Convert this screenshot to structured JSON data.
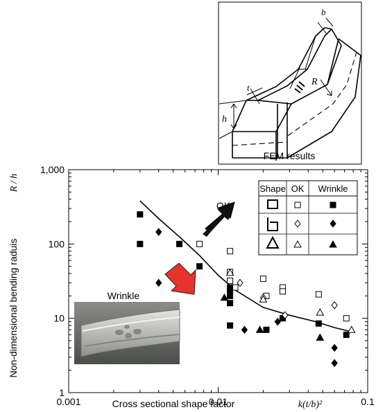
{
  "inset": {
    "caption": "FEM results",
    "labels": {
      "b": "b",
      "t": "t",
      "R": "R",
      "h": "h"
    }
  },
  "photo_label": "Wrinkle",
  "ok_arrow_label": "OK",
  "legend": {
    "headers": [
      "Shape",
      "OK",
      "Wrinkle"
    ],
    "rows": [
      {
        "shape": "square-section",
        "ok_marker": "open-square",
        "wrinkle_marker": "filled-square"
      },
      {
        "shape": "channel-section",
        "ok_marker": "open-diamond",
        "wrinkle_marker": "filled-diamond"
      },
      {
        "shape": "triangle-section",
        "ok_marker": "open-triangle",
        "wrinkle_marker": "filled-triangle"
      }
    ]
  },
  "colors": {
    "wrinkle_arrow": "#e8322d",
    "ok_arrow": "#000000"
  },
  "chart_data": {
    "type": "scatter",
    "xlabel": "Cross sectional shape factor",
    "xlabel_math": "k(t/b)²",
    "ylabel": "Non-dimensional bending raduis",
    "ylabel_math": "R / h",
    "x_scale": "log",
    "y_scale": "log",
    "xlim": [
      0.001,
      0.1
    ],
    "ylim": [
      1,
      1000
    ],
    "x_ticks": [
      {
        "value": 0.001,
        "label": "0.001"
      },
      {
        "value": 0.01,
        "label": "0.01"
      },
      {
        "value": 0.1,
        "label": "0.1"
      }
    ],
    "y_ticks": [
      {
        "value": 1,
        "label": "1"
      },
      {
        "value": 10,
        "label": "10"
      },
      {
        "value": 100,
        "label": "100"
      },
      {
        "value": 1000,
        "label": "1,000"
      }
    ],
    "boundary_curve": {
      "x": [
        0.003,
        0.004,
        0.0055,
        0.0075,
        0.01,
        0.013,
        0.02,
        0.03,
        0.045,
        0.06,
        0.08
      ],
      "y": [
        380,
        220,
        125,
        70,
        38,
        24,
        14,
        11,
        9,
        7.5,
        6.5
      ]
    },
    "series": [
      {
        "marker": "open-square",
        "points": [
          [
            0.0075,
            100
          ],
          [
            0.012,
            80
          ],
          [
            0.012,
            42
          ],
          [
            0.012,
            32
          ],
          [
            0.013,
            26
          ],
          [
            0.02,
            34
          ],
          [
            0.021,
            20
          ],
          [
            0.027,
            26
          ],
          [
            0.027,
            23
          ],
          [
            0.047,
            21
          ],
          [
            0.072,
            10
          ]
        ]
      },
      {
        "marker": "filled-square",
        "points": [
          [
            0.003,
            250
          ],
          [
            0.003,
            100
          ],
          [
            0.0055,
            100
          ],
          [
            0.0075,
            50
          ],
          [
            0.012,
            26
          ],
          [
            0.012,
            23
          ],
          [
            0.012,
            20
          ],
          [
            0.012,
            16
          ],
          [
            0.012,
            8
          ],
          [
            0.021,
            7
          ],
          [
            0.027,
            10
          ],
          [
            0.047,
            8.5
          ],
          [
            0.072,
            6
          ]
        ]
      },
      {
        "marker": "open-diamond",
        "points": [
          [
            0.014,
            30
          ],
          [
            0.02,
            19
          ],
          [
            0.028,
            11
          ],
          [
            0.06,
            15
          ]
        ]
      },
      {
        "marker": "filled-diamond",
        "points": [
          [
            0.004,
            145
          ],
          [
            0.004,
            30
          ],
          [
            0.015,
            7
          ],
          [
            0.025,
            9
          ],
          [
            0.06,
            4
          ],
          [
            0.06,
            2.5
          ]
        ]
      },
      {
        "marker": "open-triangle",
        "points": [
          [
            0.012,
            41
          ],
          [
            0.02,
            18
          ],
          [
            0.048,
            12
          ],
          [
            0.078,
            7
          ]
        ]
      },
      {
        "marker": "filled-triangle",
        "points": [
          [
            0.011,
            19
          ],
          [
            0.019,
            7
          ],
          [
            0.048,
            5.5
          ]
        ]
      }
    ]
  }
}
